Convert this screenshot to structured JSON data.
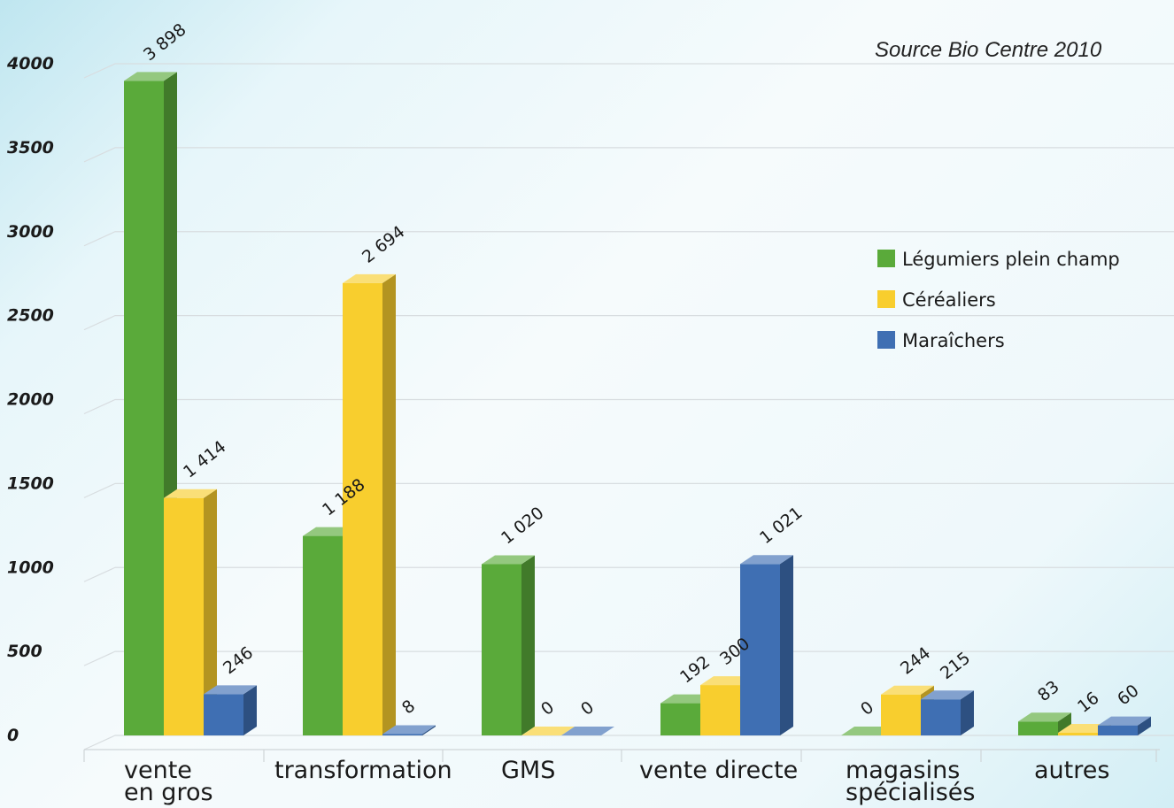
{
  "chart_data": {
    "type": "bar",
    "title": "",
    "xlabel": "",
    "ylabel": "",
    "source": "Source Bio Centre 2010",
    "categories": [
      "vente\nen gros",
      "transformation",
      "GMS",
      "vente directe",
      "magasins\nspécialisés",
      "autres"
    ],
    "series": [
      {
        "name": "Légumiers plein champ",
        "color": "#5aaa3a",
        "values": [
          3898,
          1188,
          1020,
          192,
          0,
          83
        ],
        "labels": [
          "3 898",
          "1 188",
          "1 020",
          "192",
          "0",
          "83"
        ]
      },
      {
        "name": "Céréaliers",
        "color": "#f8ce2e",
        "values": [
          1414,
          2694,
          0,
          300,
          244,
          16
        ],
        "labels": [
          "1 414",
          "2 694",
          "0",
          "300",
          "244",
          "16"
        ]
      },
      {
        "name": "Maraîchers",
        "color": "#3f6fb3",
        "values": [
          246,
          8,
          0,
          1021,
          215,
          60
        ],
        "labels": [
          "246",
          "8",
          "0",
          "1 021",
          "215",
          "60"
        ]
      }
    ],
    "yticks": [
      0,
      500,
      1000,
      1500,
      2000,
      2500,
      3000,
      3500,
      4000
    ],
    "ylim": [
      0,
      4000
    ],
    "grid": true,
    "legend_position": "top-right"
  }
}
